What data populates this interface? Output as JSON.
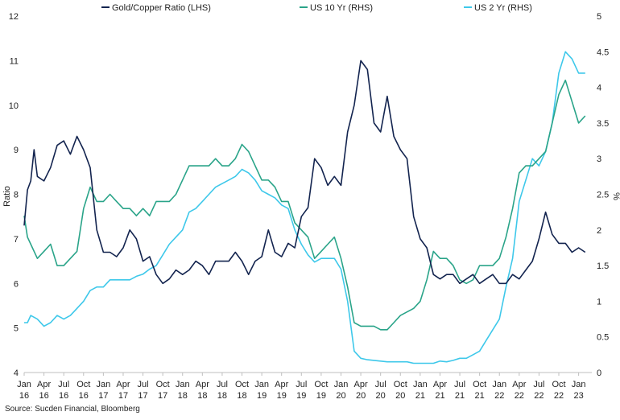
{
  "chart_data": {
    "type": "line",
    "source": "Source: Sucden Financial, Bloomberg",
    "left_axis": {
      "label": "Ratio",
      "ylim": [
        4,
        12
      ],
      "ticks": [
        "4",
        "5",
        "6",
        "7",
        "8",
        "9",
        "10",
        "11",
        "12"
      ]
    },
    "right_axis": {
      "label": "%",
      "ylim": [
        0,
        5
      ],
      "ticks": [
        "0",
        "0.5",
        "1",
        "1.5",
        "2",
        "2.5",
        "3",
        "3.5",
        "4",
        "4.5",
        "5"
      ]
    },
    "x_ticks": [
      {
        "month": "Jan",
        "year": "16",
        "t": 0
      },
      {
        "month": "Apr",
        "year": "16",
        "t": 3
      },
      {
        "month": "Jul",
        "year": "16",
        "t": 6
      },
      {
        "month": "Oct",
        "year": "16",
        "t": 9
      },
      {
        "month": "Jan",
        "year": "17",
        "t": 12
      },
      {
        "month": "Apr",
        "year": "17",
        "t": 15
      },
      {
        "month": "Jul",
        "year": "17",
        "t": 18
      },
      {
        "month": "Oct",
        "year": "17",
        "t": 21
      },
      {
        "month": "Jan",
        "year": "18",
        "t": 24
      },
      {
        "month": "Apr",
        "year": "18",
        "t": 27
      },
      {
        "month": "Jul",
        "year": "18",
        "t": 30
      },
      {
        "month": "Oct",
        "year": "18",
        "t": 33
      },
      {
        "month": "Jan",
        "year": "19",
        "t": 36
      },
      {
        "month": "Apr",
        "year": "19",
        "t": 39
      },
      {
        "month": "Jul",
        "year": "19",
        "t": 42
      },
      {
        "month": "Oct",
        "year": "19",
        "t": 45
      },
      {
        "month": "Jan",
        "year": "20",
        "t": 48
      },
      {
        "month": "Apr",
        "year": "20",
        "t": 51
      },
      {
        "month": "Jul",
        "year": "20",
        "t": 54
      },
      {
        "month": "Oct",
        "year": "20",
        "t": 57
      },
      {
        "month": "Jan",
        "year": "21",
        "t": 60
      },
      {
        "month": "Apr",
        "year": "21",
        "t": 63
      },
      {
        "month": "Jul",
        "year": "21",
        "t": 66
      },
      {
        "month": "Oct",
        "year": "21",
        "t": 69
      },
      {
        "month": "Jan",
        "year": "22",
        "t": 72
      },
      {
        "month": "Apr",
        "year": "22",
        "t": 75
      },
      {
        "month": "Jul",
        "year": "22",
        "t": 78
      },
      {
        "month": "Oct",
        "year": "22",
        "t": 81
      },
      {
        "month": "Jan",
        "year": "23",
        "t": 84
      }
    ],
    "x_range_months": [
      0,
      86
    ],
    "series": [
      {
        "name": "Gold/Copper Ratio (LHS)",
        "axis": "left",
        "color": "#13244f",
        "points": [
          [
            0,
            7.3
          ],
          [
            0.5,
            8.1
          ],
          [
            1,
            8.3
          ],
          [
            1.5,
            9.0
          ],
          [
            2,
            8.4
          ],
          [
            3,
            8.3
          ],
          [
            4,
            8.6
          ],
          [
            5,
            9.1
          ],
          [
            6,
            9.2
          ],
          [
            7,
            8.9
          ],
          [
            8,
            9.3
          ],
          [
            9,
            9.0
          ],
          [
            10,
            8.6
          ],
          [
            11,
            7.2
          ],
          [
            12,
            6.7
          ],
          [
            13,
            6.7
          ],
          [
            14,
            6.6
          ],
          [
            15,
            6.8
          ],
          [
            16,
            7.2
          ],
          [
            17,
            7.0
          ],
          [
            18,
            6.5
          ],
          [
            19,
            6.6
          ],
          [
            20,
            6.2
          ],
          [
            21,
            6.0
          ],
          [
            22,
            6.1
          ],
          [
            23,
            6.3
          ],
          [
            24,
            6.2
          ],
          [
            25,
            6.3
          ],
          [
            26,
            6.5
          ],
          [
            27,
            6.4
          ],
          [
            28,
            6.2
          ],
          [
            29,
            6.5
          ],
          [
            30,
            6.5
          ],
          [
            31,
            6.5
          ],
          [
            32,
            6.7
          ],
          [
            33,
            6.5
          ],
          [
            34,
            6.2
          ],
          [
            35,
            6.5
          ],
          [
            36,
            6.6
          ],
          [
            37,
            7.2
          ],
          [
            38,
            6.7
          ],
          [
            39,
            6.6
          ],
          [
            40,
            6.9
          ],
          [
            41,
            6.8
          ],
          [
            42,
            7.5
          ],
          [
            43,
            7.7
          ],
          [
            44,
            8.8
          ],
          [
            45,
            8.6
          ],
          [
            46,
            8.2
          ],
          [
            47,
            8.4
          ],
          [
            48,
            8.2
          ],
          [
            49,
            9.4
          ],
          [
            50,
            10.0
          ],
          [
            51,
            11.0
          ],
          [
            52,
            10.8
          ],
          [
            53,
            9.6
          ],
          [
            54,
            9.4
          ],
          [
            55,
            10.2
          ],
          [
            56,
            9.3
          ],
          [
            57,
            9.0
          ],
          [
            58,
            8.8
          ],
          [
            59,
            7.5
          ],
          [
            60,
            7.0
          ],
          [
            61,
            6.8
          ],
          [
            62,
            6.2
          ],
          [
            63,
            6.1
          ],
          [
            64,
            6.2
          ],
          [
            65,
            6.2
          ],
          [
            66,
            6.0
          ],
          [
            67,
            6.1
          ],
          [
            68,
            6.2
          ],
          [
            69,
            6.0
          ],
          [
            70,
            6.1
          ],
          [
            71,
            6.2
          ],
          [
            72,
            6.0
          ],
          [
            73,
            6.0
          ],
          [
            74,
            6.2
          ],
          [
            75,
            6.1
          ],
          [
            76,
            6.3
          ],
          [
            77,
            6.5
          ],
          [
            78,
            7.0
          ],
          [
            79,
            7.6
          ],
          [
            80,
            7.1
          ],
          [
            81,
            6.9
          ],
          [
            82,
            6.9
          ],
          [
            83,
            6.7
          ],
          [
            84,
            6.8
          ],
          [
            85,
            6.7
          ]
        ]
      },
      {
        "name": "US 10 Yr (RHS)",
        "axis": "right",
        "color": "#2aa489",
        "points": [
          [
            0,
            2.2
          ],
          [
            0.5,
            1.9
          ],
          [
            1,
            1.8
          ],
          [
            2,
            1.6
          ],
          [
            3,
            1.7
          ],
          [
            4,
            1.8
          ],
          [
            5,
            1.5
          ],
          [
            6,
            1.5
          ],
          [
            7,
            1.6
          ],
          [
            8,
            1.7
          ],
          [
            9,
            2.3
          ],
          [
            10,
            2.6
          ],
          [
            11,
            2.4
          ],
          [
            12,
            2.4
          ],
          [
            13,
            2.5
          ],
          [
            14,
            2.4
          ],
          [
            15,
            2.3
          ],
          [
            16,
            2.3
          ],
          [
            17,
            2.2
          ],
          [
            18,
            2.3
          ],
          [
            19,
            2.2
          ],
          [
            20,
            2.4
          ],
          [
            21,
            2.4
          ],
          [
            22,
            2.4
          ],
          [
            23,
            2.5
          ],
          [
            24,
            2.7
          ],
          [
            25,
            2.9
          ],
          [
            26,
            2.9
          ],
          [
            27,
            2.9
          ],
          [
            28,
            2.9
          ],
          [
            29,
            3.0
          ],
          [
            30,
            2.9
          ],
          [
            31,
            2.9
          ],
          [
            32,
            3.0
          ],
          [
            33,
            3.2
          ],
          [
            34,
            3.1
          ],
          [
            35,
            2.9
          ],
          [
            36,
            2.7
          ],
          [
            37,
            2.7
          ],
          [
            38,
            2.6
          ],
          [
            39,
            2.4
          ],
          [
            40,
            2.4
          ],
          [
            41,
            2.1
          ],
          [
            42,
            2.0
          ],
          [
            43,
            1.9
          ],
          [
            44,
            1.6
          ],
          [
            45,
            1.7
          ],
          [
            46,
            1.8
          ],
          [
            47,
            1.9
          ],
          [
            48,
            1.6
          ],
          [
            49,
            1.2
          ],
          [
            50,
            0.7
          ],
          [
            51,
            0.65
          ],
          [
            52,
            0.65
          ],
          [
            53,
            0.65
          ],
          [
            54,
            0.6
          ],
          [
            55,
            0.6
          ],
          [
            56,
            0.7
          ],
          [
            57,
            0.8
          ],
          [
            58,
            0.85
          ],
          [
            59,
            0.9
          ],
          [
            60,
            1.0
          ],
          [
            61,
            1.3
          ],
          [
            62,
            1.7
          ],
          [
            63,
            1.6
          ],
          [
            64,
            1.6
          ],
          [
            65,
            1.5
          ],
          [
            66,
            1.3
          ],
          [
            67,
            1.25
          ],
          [
            68,
            1.3
          ],
          [
            69,
            1.5
          ],
          [
            70,
            1.5
          ],
          [
            71,
            1.5
          ],
          [
            72,
            1.6
          ],
          [
            73,
            1.9
          ],
          [
            74,
            2.3
          ],
          [
            75,
            2.8
          ],
          [
            76,
            2.9
          ],
          [
            77,
            2.9
          ],
          [
            78,
            3.0
          ],
          [
            79,
            3.1
          ],
          [
            80,
            3.5
          ],
          [
            81,
            3.9
          ],
          [
            82,
            4.1
          ],
          [
            83,
            3.8
          ],
          [
            84,
            3.5
          ],
          [
            85,
            3.6
          ]
        ]
      },
      {
        "name": "US 2 Yr (RHS)",
        "axis": "right",
        "color": "#3ec8ea",
        "points": [
          [
            0,
            0.7
          ],
          [
            0.5,
            0.7
          ],
          [
            1,
            0.8
          ],
          [
            2,
            0.75
          ],
          [
            3,
            0.65
          ],
          [
            4,
            0.7
          ],
          [
            5,
            0.8
          ],
          [
            6,
            0.75
          ],
          [
            7,
            0.8
          ],
          [
            8,
            0.9
          ],
          [
            9,
            1.0
          ],
          [
            10,
            1.15
          ],
          [
            11,
            1.2
          ],
          [
            12,
            1.2
          ],
          [
            13,
            1.3
          ],
          [
            14,
            1.3
          ],
          [
            15,
            1.3
          ],
          [
            16,
            1.3
          ],
          [
            17,
            1.35
          ],
          [
            18,
            1.38
          ],
          [
            19,
            1.45
          ],
          [
            20,
            1.5
          ],
          [
            21,
            1.65
          ],
          [
            22,
            1.8
          ],
          [
            23,
            1.9
          ],
          [
            24,
            2.0
          ],
          [
            25,
            2.25
          ],
          [
            26,
            2.3
          ],
          [
            27,
            2.4
          ],
          [
            28,
            2.5
          ],
          [
            29,
            2.6
          ],
          [
            30,
            2.65
          ],
          [
            31,
            2.7
          ],
          [
            32,
            2.75
          ],
          [
            33,
            2.85
          ],
          [
            34,
            2.8
          ],
          [
            35,
            2.7
          ],
          [
            36,
            2.55
          ],
          [
            37,
            2.5
          ],
          [
            38,
            2.45
          ],
          [
            39,
            2.35
          ],
          [
            40,
            2.3
          ],
          [
            41,
            2.0
          ],
          [
            42,
            1.8
          ],
          [
            43,
            1.65
          ],
          [
            44,
            1.55
          ],
          [
            45,
            1.6
          ],
          [
            46,
            1.6
          ],
          [
            47,
            1.6
          ],
          [
            48,
            1.45
          ],
          [
            49,
            1.0
          ],
          [
            50,
            0.3
          ],
          [
            51,
            0.2
          ],
          [
            52,
            0.18
          ],
          [
            53,
            0.17
          ],
          [
            54,
            0.16
          ],
          [
            55,
            0.15
          ],
          [
            56,
            0.15
          ],
          [
            57,
            0.15
          ],
          [
            58,
            0.15
          ],
          [
            59,
            0.13
          ],
          [
            60,
            0.13
          ],
          [
            61,
            0.13
          ],
          [
            62,
            0.13
          ],
          [
            63,
            0.16
          ],
          [
            64,
            0.15
          ],
          [
            65,
            0.17
          ],
          [
            66,
            0.2
          ],
          [
            67,
            0.2
          ],
          [
            68,
            0.25
          ],
          [
            69,
            0.3
          ],
          [
            70,
            0.45
          ],
          [
            71,
            0.6
          ],
          [
            72,
            0.75
          ],
          [
            73,
            1.2
          ],
          [
            74,
            1.6
          ],
          [
            75,
            2.4
          ],
          [
            76,
            2.7
          ],
          [
            77,
            3.0
          ],
          [
            78,
            2.9
          ],
          [
            79,
            3.1
          ],
          [
            80,
            3.5
          ],
          [
            81,
            4.2
          ],
          [
            82,
            4.5
          ],
          [
            83,
            4.4
          ],
          [
            84,
            4.2
          ],
          [
            85,
            4.2
          ]
        ]
      }
    ]
  }
}
